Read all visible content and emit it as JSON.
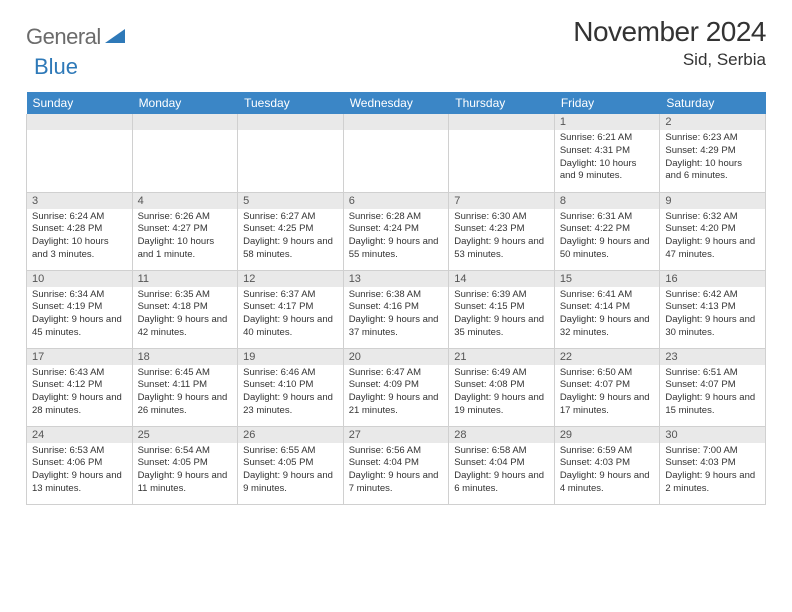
{
  "logo": {
    "text1": "General",
    "text2": "Blue"
  },
  "title": "November 2024",
  "location": "Sid, Serbia",
  "colors": {
    "header_bg": "#3b86c6",
    "header_text": "#ffffff",
    "daynum_bg": "#e9e9e9",
    "border": "#d0d0d0",
    "logo_gray": "#6b6b6b",
    "logo_blue": "#2e79b8"
  },
  "weekdays": [
    "Sunday",
    "Monday",
    "Tuesday",
    "Wednesday",
    "Thursday",
    "Friday",
    "Saturday"
  ],
  "weeks": [
    [
      null,
      null,
      null,
      null,
      null,
      {
        "n": "1",
        "sr": "Sunrise: 6:21 AM",
        "ss": "Sunset: 4:31 PM",
        "dl": "Daylight: 10 hours and 9 minutes."
      },
      {
        "n": "2",
        "sr": "Sunrise: 6:23 AM",
        "ss": "Sunset: 4:29 PM",
        "dl": "Daylight: 10 hours and 6 minutes."
      }
    ],
    [
      {
        "n": "3",
        "sr": "Sunrise: 6:24 AM",
        "ss": "Sunset: 4:28 PM",
        "dl": "Daylight: 10 hours and 3 minutes."
      },
      {
        "n": "4",
        "sr": "Sunrise: 6:26 AM",
        "ss": "Sunset: 4:27 PM",
        "dl": "Daylight: 10 hours and 1 minute."
      },
      {
        "n": "5",
        "sr": "Sunrise: 6:27 AM",
        "ss": "Sunset: 4:25 PM",
        "dl": "Daylight: 9 hours and 58 minutes."
      },
      {
        "n": "6",
        "sr": "Sunrise: 6:28 AM",
        "ss": "Sunset: 4:24 PM",
        "dl": "Daylight: 9 hours and 55 minutes."
      },
      {
        "n": "7",
        "sr": "Sunrise: 6:30 AM",
        "ss": "Sunset: 4:23 PM",
        "dl": "Daylight: 9 hours and 53 minutes."
      },
      {
        "n": "8",
        "sr": "Sunrise: 6:31 AM",
        "ss": "Sunset: 4:22 PM",
        "dl": "Daylight: 9 hours and 50 minutes."
      },
      {
        "n": "9",
        "sr": "Sunrise: 6:32 AM",
        "ss": "Sunset: 4:20 PM",
        "dl": "Daylight: 9 hours and 47 minutes."
      }
    ],
    [
      {
        "n": "10",
        "sr": "Sunrise: 6:34 AM",
        "ss": "Sunset: 4:19 PM",
        "dl": "Daylight: 9 hours and 45 minutes."
      },
      {
        "n": "11",
        "sr": "Sunrise: 6:35 AM",
        "ss": "Sunset: 4:18 PM",
        "dl": "Daylight: 9 hours and 42 minutes."
      },
      {
        "n": "12",
        "sr": "Sunrise: 6:37 AM",
        "ss": "Sunset: 4:17 PM",
        "dl": "Daylight: 9 hours and 40 minutes."
      },
      {
        "n": "13",
        "sr": "Sunrise: 6:38 AM",
        "ss": "Sunset: 4:16 PM",
        "dl": "Daylight: 9 hours and 37 minutes."
      },
      {
        "n": "14",
        "sr": "Sunrise: 6:39 AM",
        "ss": "Sunset: 4:15 PM",
        "dl": "Daylight: 9 hours and 35 minutes."
      },
      {
        "n": "15",
        "sr": "Sunrise: 6:41 AM",
        "ss": "Sunset: 4:14 PM",
        "dl": "Daylight: 9 hours and 32 minutes."
      },
      {
        "n": "16",
        "sr": "Sunrise: 6:42 AM",
        "ss": "Sunset: 4:13 PM",
        "dl": "Daylight: 9 hours and 30 minutes."
      }
    ],
    [
      {
        "n": "17",
        "sr": "Sunrise: 6:43 AM",
        "ss": "Sunset: 4:12 PM",
        "dl": "Daylight: 9 hours and 28 minutes."
      },
      {
        "n": "18",
        "sr": "Sunrise: 6:45 AM",
        "ss": "Sunset: 4:11 PM",
        "dl": "Daylight: 9 hours and 26 minutes."
      },
      {
        "n": "19",
        "sr": "Sunrise: 6:46 AM",
        "ss": "Sunset: 4:10 PM",
        "dl": "Daylight: 9 hours and 23 minutes."
      },
      {
        "n": "20",
        "sr": "Sunrise: 6:47 AM",
        "ss": "Sunset: 4:09 PM",
        "dl": "Daylight: 9 hours and 21 minutes."
      },
      {
        "n": "21",
        "sr": "Sunrise: 6:49 AM",
        "ss": "Sunset: 4:08 PM",
        "dl": "Daylight: 9 hours and 19 minutes."
      },
      {
        "n": "22",
        "sr": "Sunrise: 6:50 AM",
        "ss": "Sunset: 4:07 PM",
        "dl": "Daylight: 9 hours and 17 minutes."
      },
      {
        "n": "23",
        "sr": "Sunrise: 6:51 AM",
        "ss": "Sunset: 4:07 PM",
        "dl": "Daylight: 9 hours and 15 minutes."
      }
    ],
    [
      {
        "n": "24",
        "sr": "Sunrise: 6:53 AM",
        "ss": "Sunset: 4:06 PM",
        "dl": "Daylight: 9 hours and 13 minutes."
      },
      {
        "n": "25",
        "sr": "Sunrise: 6:54 AM",
        "ss": "Sunset: 4:05 PM",
        "dl": "Daylight: 9 hours and 11 minutes."
      },
      {
        "n": "26",
        "sr": "Sunrise: 6:55 AM",
        "ss": "Sunset: 4:05 PM",
        "dl": "Daylight: 9 hours and 9 minutes."
      },
      {
        "n": "27",
        "sr": "Sunrise: 6:56 AM",
        "ss": "Sunset: 4:04 PM",
        "dl": "Daylight: 9 hours and 7 minutes."
      },
      {
        "n": "28",
        "sr": "Sunrise: 6:58 AM",
        "ss": "Sunset: 4:04 PM",
        "dl": "Daylight: 9 hours and 6 minutes."
      },
      {
        "n": "29",
        "sr": "Sunrise: 6:59 AM",
        "ss": "Sunset: 4:03 PM",
        "dl": "Daylight: 9 hours and 4 minutes."
      },
      {
        "n": "30",
        "sr": "Sunrise: 7:00 AM",
        "ss": "Sunset: 4:03 PM",
        "dl": "Daylight: 9 hours and 2 minutes."
      }
    ]
  ]
}
